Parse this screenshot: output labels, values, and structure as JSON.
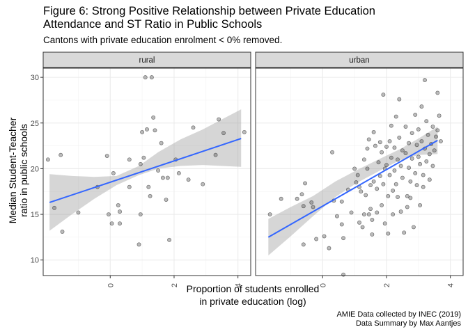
{
  "title_line1": "Figure 6: Strong Positive Relationship between Private Education",
  "title_line2": "Attendance and ST Ratio in Public Schools",
  "subtitle": "Cantons with private education enrolment < 0% removed.",
  "caption_line1": "AMIE Data collected by INEC (2019)",
  "caption_line2": "Data Summary by Max Aantjes",
  "chart_data": {
    "type": "scatter",
    "xlabel_line1": "Proportion of students enrolled",
    "xlabel_line2": "in private education (log)",
    "ylabel_line1": "Median Student-Teacher",
    "ylabel_line2": "ratio in public schools",
    "xlim": [
      -2.1,
      4.4
    ],
    "ylim": [
      8.3,
      31.0
    ],
    "x_ticks": [
      0,
      2,
      4
    ],
    "y_ticks": [
      10,
      15,
      20,
      25,
      30
    ],
    "grid": true,
    "point_color": "#555555",
    "line_color": "#3366ff",
    "band_color": "#999999",
    "facets": [
      {
        "label": "rural",
        "fit": {
          "x0": -1.9,
          "y0": 16.3,
          "x1": 4.1,
          "y1": 23.3
        },
        "band": {
          "x": [
            -1.9,
            -1.2,
            -0.5,
            0.2,
            0.9,
            1.5,
            2.2,
            2.9,
            3.5,
            4.1
          ],
          "lo": [
            13.2,
            15.0,
            16.7,
            18.2,
            19.3,
            20.0,
            20.3,
            20.4,
            20.3,
            20.2
          ],
          "hi": [
            19.4,
            19.2,
            19.1,
            19.2,
            20.3,
            21.8,
            23.2,
            24.3,
            25.4,
            26.5
          ]
        },
        "points": [
          [
            -1.95,
            21.0
          ],
          [
            -1.75,
            15.7
          ],
          [
            -1.55,
            21.5
          ],
          [
            -1.5,
            13.1
          ],
          [
            -1.0,
            15.2
          ],
          [
            -0.4,
            18.0
          ],
          [
            -0.1,
            21.4
          ],
          [
            -0.05,
            15.0
          ],
          [
            0.05,
            14.0
          ],
          [
            0.1,
            19.5
          ],
          [
            0.25,
            16.0
          ],
          [
            0.3,
            14.0
          ],
          [
            0.3,
            15.3
          ],
          [
            0.6,
            18.0
          ],
          [
            0.6,
            21.0
          ],
          [
            0.9,
            11.7
          ],
          [
            0.95,
            20.5
          ],
          [
            0.95,
            15.0
          ],
          [
            1.0,
            24.0
          ],
          [
            1.05,
            21.2
          ],
          [
            1.1,
            30.0
          ],
          [
            1.15,
            24.3
          ],
          [
            1.2,
            18.0
          ],
          [
            1.25,
            17.0
          ],
          [
            1.3,
            30.0
          ],
          [
            1.35,
            25.6
          ],
          [
            1.4,
            24.2
          ],
          [
            1.5,
            19.8
          ],
          [
            1.6,
            22.8
          ],
          [
            1.65,
            19.0
          ],
          [
            1.75,
            16.6
          ],
          [
            1.8,
            19.0
          ],
          [
            1.85,
            12.2
          ],
          [
            2.05,
            21.0
          ],
          [
            2.15,
            19.5
          ],
          [
            2.45,
            18.8
          ],
          [
            2.6,
            24.5
          ],
          [
            2.9,
            18.3
          ],
          [
            3.3,
            21.5
          ],
          [
            3.4,
            25.4
          ],
          [
            3.55,
            23.9
          ],
          [
            4.2,
            24.0
          ]
        ]
      },
      {
        "label": "urban",
        "fit": {
          "x0": -1.7,
          "y0": 12.5,
          "x1": 3.6,
          "y1": 23.1
        },
        "band": {
          "x": [
            -1.7,
            -1.0,
            -0.3,
            0.4,
            1.1,
            1.8,
            2.4,
            3.0,
            3.6
          ],
          "lo": [
            10.5,
            12.6,
            14.8,
            16.9,
            18.5,
            19.8,
            20.9,
            21.5,
            21.6
          ],
          "hi": [
            14.5,
            15.8,
            17.0,
            18.6,
            19.9,
            21.1,
            22.1,
            23.3,
            24.6
          ]
        },
        "points": [
          [
            -1.65,
            15.0
          ],
          [
            -1.3,
            16.7
          ],
          [
            -0.8,
            16.7
          ],
          [
            -0.65,
            17.2
          ],
          [
            -0.6,
            15.9
          ],
          [
            -0.6,
            11.7
          ],
          [
            -0.55,
            18.4
          ],
          [
            -0.35,
            16.3
          ],
          [
            -0.3,
            15.8
          ],
          [
            -0.2,
            12.3
          ],
          [
            0.05,
            12.6
          ],
          [
            0.2,
            11.3
          ],
          [
            0.3,
            21.8
          ],
          [
            0.35,
            16.5
          ],
          [
            0.45,
            14.8
          ],
          [
            0.6,
            16.4
          ],
          [
            0.6,
            13.9
          ],
          [
            0.65,
            8.4
          ],
          [
            0.65,
            12.4
          ],
          [
            0.8,
            17.7
          ],
          [
            0.9,
            15.2
          ],
          [
            1.0,
            20.0
          ],
          [
            1.05,
            18.5
          ],
          [
            1.1,
            19.3
          ],
          [
            1.15,
            18.0
          ],
          [
            1.15,
            14.1
          ],
          [
            1.2,
            17.5
          ],
          [
            1.25,
            13.6
          ],
          [
            1.3,
            21.0
          ],
          [
            1.3,
            15.0
          ],
          [
            1.35,
            17.1
          ],
          [
            1.4,
            20.0
          ],
          [
            1.4,
            22.2
          ],
          [
            1.45,
            23.2
          ],
          [
            1.45,
            15.0
          ],
          [
            1.5,
            15.6
          ],
          [
            1.5,
            18.2
          ],
          [
            1.55,
            14.4
          ],
          [
            1.55,
            12.8
          ],
          [
            1.6,
            24.0
          ],
          [
            1.6,
            18.6
          ],
          [
            1.65,
            22.5
          ],
          [
            1.7,
            17.8
          ],
          [
            1.7,
            15.2
          ],
          [
            1.75,
            20.7
          ],
          [
            1.8,
            19.2
          ],
          [
            1.8,
            22.9
          ],
          [
            1.85,
            21.8
          ],
          [
            1.85,
            16.0
          ],
          [
            1.9,
            28.1
          ],
          [
            1.9,
            18.3
          ],
          [
            1.95,
            20.0
          ],
          [
            1.95,
            14.0
          ],
          [
            2.0,
            22.4
          ],
          [
            2.0,
            20.4
          ],
          [
            2.05,
            17.0
          ],
          [
            2.05,
            12.9
          ],
          [
            2.1,
            23.0
          ],
          [
            2.1,
            19.3
          ],
          [
            2.15,
            24.7
          ],
          [
            2.15,
            21.2
          ],
          [
            2.2,
            17.6
          ],
          [
            2.2,
            15.0
          ],
          [
            2.25,
            22.3
          ],
          [
            2.25,
            19.8
          ],
          [
            2.3,
            25.7
          ],
          [
            2.3,
            18.3
          ],
          [
            2.35,
            16.9
          ],
          [
            2.35,
            21.0
          ],
          [
            2.4,
            27.6
          ],
          [
            2.4,
            23.4
          ],
          [
            2.45,
            20.3
          ],
          [
            2.45,
            15.3
          ],
          [
            2.5,
            22.0
          ],
          [
            2.5,
            19.0
          ],
          [
            2.55,
            13.0
          ],
          [
            2.6,
            24.6
          ],
          [
            2.6,
            21.7
          ],
          [
            2.65,
            17.0
          ],
          [
            2.65,
            15.8
          ],
          [
            2.7,
            22.8
          ],
          [
            2.7,
            20.1
          ],
          [
            2.75,
            18.6
          ],
          [
            2.75,
            16.8
          ],
          [
            2.8,
            23.9
          ],
          [
            2.8,
            21.1
          ],
          [
            2.85,
            13.6
          ],
          [
            2.9,
            25.9
          ],
          [
            2.9,
            19.5
          ],
          [
            2.95,
            22.6
          ],
          [
            2.95,
            18.2
          ],
          [
            3.0,
            24.3
          ],
          [
            3.0,
            21.3
          ],
          [
            3.05,
            16.0
          ],
          [
            3.05,
            20.5
          ],
          [
            3.1,
            26.8
          ],
          [
            3.1,
            23.0
          ],
          [
            3.15,
            19.3
          ],
          [
            3.15,
            18.0
          ],
          [
            3.2,
            29.7
          ],
          [
            3.2,
            22.2
          ],
          [
            3.25,
            25.2
          ],
          [
            3.25,
            20.8
          ],
          [
            3.3,
            23.7
          ],
          [
            3.35,
            21.6
          ],
          [
            3.35,
            18.8
          ],
          [
            3.4,
            22.7
          ],
          [
            3.45,
            24.6
          ],
          [
            3.45,
            20.3
          ],
          [
            3.5,
            22.0
          ],
          [
            3.55,
            23.5
          ],
          [
            3.6,
            28.3
          ],
          [
            3.6,
            24.2
          ],
          [
            3.65,
            25.8
          ],
          [
            3.7,
            23.0
          ]
        ]
      }
    ]
  }
}
